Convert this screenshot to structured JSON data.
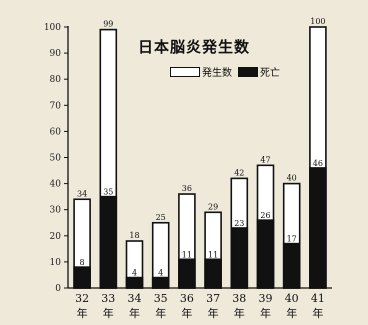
{
  "chart_data": {
    "type": "bar",
    "title": "日本脳炎発生数",
    "ylim": [
      0,
      100
    ],
    "yticks": [
      0,
      10,
      20,
      30,
      40,
      50,
      60,
      70,
      80,
      90,
      100
    ],
    "categories": [
      {
        "num": "32",
        "unit": "年"
      },
      {
        "num": "33",
        "unit": "年"
      },
      {
        "num": "34",
        "unit": "年"
      },
      {
        "num": "35",
        "unit": "年"
      },
      {
        "num": "36",
        "unit": "年"
      },
      {
        "num": "37",
        "unit": "年"
      },
      {
        "num": "38",
        "unit": "年"
      },
      {
        "num": "39",
        "unit": "年"
      },
      {
        "num": "40",
        "unit": "年"
      },
      {
        "num": "41",
        "unit": "年"
      }
    ],
    "series": [
      {
        "name": "発生数",
        "values": [
          34,
          99,
          18,
          25,
          36,
          29,
          42,
          47,
          40,
          100
        ],
        "color": "#ffffff"
      },
      {
        "name": "死亡",
        "values": [
          8,
          35,
          4,
          4,
          11,
          11,
          23,
          26,
          17,
          46
        ],
        "color": "#111111"
      }
    ],
    "legend_position": "top-right",
    "grid": false
  }
}
